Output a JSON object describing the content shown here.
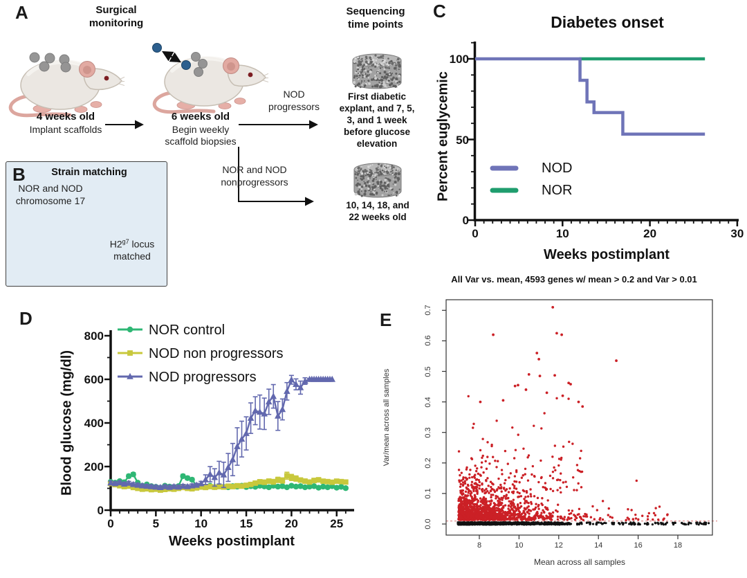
{
  "panels": {
    "a": {
      "label": "A",
      "col1_title": "Surgical\nmonitoring",
      "col2_title": "Sequencing\ntime points",
      "mouse1_caption_bold": "4 weeks old",
      "mouse1_caption": "Implant scaffolds",
      "mouse2_caption_bold": "6 weeks old",
      "mouse2_caption": "Begin weekly\nscaffold biopsies",
      "arrow1_label": "NOD\nprogressors",
      "arrow2_label": "NOR and NOD\nnonprogressors",
      "scaffold1_caption": "First diabetic\nexplant, and 7, 5,\n3, and 1 week\nbefore glucose\nelevation",
      "scaffold2_caption": "10, 14, 18, and\n22 weeks old"
    },
    "b": {
      "label": "B",
      "title": "Strain matching",
      "chromosome_label": "NOR and NOD\nchromosome 17",
      "locus_pre": "H2",
      "locus_sup": "g7",
      "locus_post": " locus",
      "locus_line2": "matched"
    },
    "c": {
      "label": "C"
    },
    "d": {
      "label": "D"
    },
    "e": {
      "label": "E"
    }
  },
  "chart_data": [
    {
      "panel": "C",
      "type": "line",
      "title": "Diabetes onset",
      "xlabel": "Weeks postimplant",
      "ylabel": "Percent euglycemic",
      "xlim": [
        0,
        30
      ],
      "ylim": [
        0,
        110
      ],
      "xticks": [
        0,
        10,
        20,
        30
      ],
      "yticks": [
        0,
        50,
        100
      ],
      "legend_position": "inside-left-middle",
      "series": [
        {
          "name": "NOD",
          "color": "#6f74b8",
          "steps": [
            [
              0,
              100
            ],
            [
              12,
              100
            ],
            [
              12,
              86.7
            ],
            [
              12.8,
              86.7
            ],
            [
              12.8,
              73.3
            ],
            [
              13.6,
              73.3
            ],
            [
              13.6,
              66.7
            ],
            [
              16.9,
              66.7
            ],
            [
              16.9,
              53.3
            ],
            [
              26.3,
              53.3
            ]
          ]
        },
        {
          "name": "NOR",
          "color": "#1f9d6e",
          "steps": [
            [
              11.9,
              100
            ],
            [
              26.3,
              100
            ]
          ]
        }
      ]
    },
    {
      "panel": "D",
      "type": "line-errorbar",
      "xlabel": "Weeks postimplant",
      "ylabel": "Blood glucose (mg/dl)",
      "xlim": [
        0,
        27
      ],
      "ylim": [
        0,
        800
      ],
      "xticks": [
        0,
        5,
        10,
        15,
        20,
        25
      ],
      "yticks": [
        0,
        200,
        400,
        600,
        800
      ],
      "series": [
        {
          "name": "NOR control",
          "color": "#2eb774",
          "marker": "circle",
          "points": [
            [
              0,
              130,
              6
            ],
            [
              0.5,
              126,
              6
            ],
            [
              1,
              133,
              6
            ],
            [
              1.5,
              128,
              6
            ],
            [
              2,
              156,
              8
            ],
            [
              2.5,
              164,
              8
            ],
            [
              3,
              126,
              6
            ],
            [
              3.5,
              112,
              6
            ],
            [
              4,
              118,
              6
            ],
            [
              4.5,
              110,
              6
            ],
            [
              5,
              107,
              6
            ],
            [
              5.5,
              103,
              6
            ],
            [
              6,
              112,
              6
            ],
            [
              6.5,
              108,
              6
            ],
            [
              7,
              105,
              6
            ],
            [
              7.5,
              110,
              6
            ],
            [
              8,
              156,
              8
            ],
            [
              8.5,
              147,
              8
            ],
            [
              9,
              140,
              7
            ],
            [
              9.5,
              112,
              6
            ],
            [
              10,
              110,
              6
            ],
            [
              10.5,
              107,
              6
            ],
            [
              11,
              112,
              6
            ],
            [
              11.5,
              106,
              6
            ],
            [
              12,
              110,
              6
            ],
            [
              12.5,
              107,
              6
            ],
            [
              13,
              105,
              6
            ],
            [
              13.5,
              110,
              6
            ],
            [
              14,
              108,
              6
            ],
            [
              14.5,
              112,
              6
            ],
            [
              15,
              106,
              6
            ],
            [
              15.5,
              110,
              6
            ],
            [
              16,
              107,
              6
            ],
            [
              16.5,
              112,
              6
            ],
            [
              17,
              109,
              6
            ],
            [
              17.5,
              105,
              6
            ],
            [
              18,
              112,
              6
            ],
            [
              18.5,
              108,
              6
            ],
            [
              19,
              110,
              6
            ],
            [
              19.5,
              105,
              6
            ],
            [
              20,
              112,
              6
            ],
            [
              20.5,
              108,
              6
            ],
            [
              21,
              110,
              6
            ],
            [
              21.5,
              105,
              6
            ],
            [
              22,
              108,
              6
            ],
            [
              22.5,
              110,
              6
            ],
            [
              23,
              103,
              6
            ],
            [
              23.5,
              108,
              6
            ],
            [
              24,
              105,
              6
            ],
            [
              24.5,
              110,
              6
            ],
            [
              25,
              103,
              6
            ],
            [
              25.5,
              107,
              6
            ],
            [
              26,
              101,
              6
            ]
          ]
        },
        {
          "name": "NOD non progressors",
          "color": "#c8c83c",
          "marker": "square",
          "points": [
            [
              0,
              122,
              7
            ],
            [
              0.5,
              117,
              7
            ],
            [
              1,
              112,
              7
            ],
            [
              1.5,
              108,
              7
            ],
            [
              2,
              110,
              7
            ],
            [
              2.5,
              104,
              7
            ],
            [
              3,
              100,
              7
            ],
            [
              3.5,
              96,
              7
            ],
            [
              4,
              98,
              7
            ],
            [
              4.5,
              94,
              7
            ],
            [
              5,
              96,
              7
            ],
            [
              5.5,
              92,
              7
            ],
            [
              6,
              95,
              7
            ],
            [
              6.5,
              98,
              7
            ],
            [
              7,
              96,
              7
            ],
            [
              7.5,
              100,
              7
            ],
            [
              8,
              104,
              7
            ],
            [
              8.5,
              100,
              7
            ],
            [
              9,
              98,
              7
            ],
            [
              9.5,
              102,
              7
            ],
            [
              10,
              106,
              7
            ],
            [
              10.5,
              104,
              7
            ],
            [
              11,
              108,
              7
            ],
            [
              11.5,
              105,
              7
            ],
            [
              12,
              108,
              7
            ],
            [
              12.5,
              106,
              7
            ],
            [
              13,
              110,
              7
            ],
            [
              13.5,
              108,
              7
            ],
            [
              14,
              112,
              7
            ],
            [
              14.5,
              110,
              7
            ],
            [
              15,
              114,
              8
            ],
            [
              15.5,
              118,
              8
            ],
            [
              16,
              124,
              9
            ],
            [
              16.5,
              130,
              10
            ],
            [
              17,
              128,
              10
            ],
            [
              17.5,
              133,
              10
            ],
            [
              18,
              130,
              11
            ],
            [
              18.5,
              139,
              12
            ],
            [
              19,
              136,
              12
            ],
            [
              19.5,
              158,
              16
            ],
            [
              20,
              150,
              14
            ],
            [
              20.5,
              145,
              12
            ],
            [
              21,
              138,
              10
            ],
            [
              21.5,
              133,
              10
            ],
            [
              22,
              129,
              9
            ],
            [
              22.5,
              136,
              10
            ],
            [
              23,
              139,
              10
            ],
            [
              23.5,
              133,
              9
            ],
            [
              24,
              131,
              9
            ],
            [
              24.5,
              128,
              9
            ],
            [
              25,
              133,
              9
            ],
            [
              25.5,
              131,
              9
            ],
            [
              26,
              129,
              9
            ]
          ]
        },
        {
          "name": "NOD progressors",
          "color": "#6268ae",
          "marker": "triangle",
          "points": [
            [
              0,
              125,
              8
            ],
            [
              0.5,
              122,
              8
            ],
            [
              1,
              126,
              8
            ],
            [
              1.5,
              120,
              8
            ],
            [
              2,
              124,
              8
            ],
            [
              2.5,
              118,
              8
            ],
            [
              3,
              115,
              8
            ],
            [
              3.5,
              112,
              8
            ],
            [
              4,
              110,
              8
            ],
            [
              4.5,
              108,
              8
            ],
            [
              5,
              106,
              8
            ],
            [
              5.5,
              104,
              8
            ],
            [
              6,
              108,
              8
            ],
            [
              6.5,
              105,
              8
            ],
            [
              7,
              108,
              8
            ],
            [
              7.5,
              106,
              8
            ],
            [
              8,
              110,
              8
            ],
            [
              8.5,
              108,
              8
            ],
            [
              9,
              112,
              8
            ],
            [
              9.5,
              115,
              8
            ],
            [
              10,
              122,
              10
            ],
            [
              10.5,
              140,
              22
            ],
            [
              11,
              165,
              35
            ],
            [
              11.5,
              150,
              40
            ],
            [
              12,
              172,
              52
            ],
            [
              12.5,
              162,
              58
            ],
            [
              13,
              196,
              64
            ],
            [
              13.5,
              232,
              74
            ],
            [
              14,
              292,
              86
            ],
            [
              14.5,
              326,
              82
            ],
            [
              15,
              352,
              76
            ],
            [
              15.5,
              422,
              70
            ],
            [
              16,
              456,
              64
            ],
            [
              16.5,
              450,
              78
            ],
            [
              17,
              442,
              72
            ],
            [
              17.5,
              497,
              58
            ],
            [
              18,
              522,
              54
            ],
            [
              18.5,
              432,
              66
            ],
            [
              19,
              462,
              48
            ],
            [
              19.5,
              545,
              40
            ],
            [
              20,
              598,
              20
            ],
            [
              20.5,
              577,
              25
            ],
            [
              21,
              562,
              30
            ],
            [
              21.5,
              592,
              15
            ],
            [
              22,
              600,
              4
            ],
            [
              22.25,
              600,
              0
            ],
            [
              22.5,
              600,
              0
            ],
            [
              22.75,
              600,
              0
            ],
            [
              23,
              600,
              0
            ],
            [
              23.25,
              600,
              0
            ],
            [
              23.5,
              600,
              0
            ],
            [
              23.75,
              600,
              0
            ],
            [
              24,
              600,
              0
            ],
            [
              24.25,
              600,
              0
            ],
            [
              24.5,
              600,
              0
            ]
          ]
        }
      ]
    },
    {
      "panel": "E",
      "type": "scatter",
      "title": "All Var vs. mean, 4593 genes w/ mean > 0.2 and Var > 0.01",
      "xlabel": "Mean across all samples",
      "ylabel": "Var/mean across all samples",
      "xlim": [
        6.3,
        19.8
      ],
      "ylim": [
        -0.035,
        0.735
      ],
      "xticks": [
        8,
        10,
        12,
        14,
        16,
        18
      ],
      "yticks": [
        0,
        0.1,
        0.2,
        0.3,
        0.4,
        0.5,
        0.6,
        0.7
      ],
      "threshold_line_y": 0.01,
      "threshold_line_color": "#e08d8d",
      "point_colors": {
        "significant": "#cb2026",
        "nonsignificant": "#111111"
      },
      "outliers_red": [
        [
          11.7,
          0.71
        ],
        [
          8.7,
          0.62
        ],
        [
          11.9,
          0.625
        ],
        [
          12.15,
          0.62
        ],
        [
          10.9,
          0.56
        ],
        [
          11.0,
          0.54
        ],
        [
          14.9,
          0.535
        ],
        [
          10.5,
          0.49
        ],
        [
          11.05,
          0.485
        ],
        [
          11.8,
          0.487
        ],
        [
          9.8,
          0.452
        ],
        [
          9.95,
          0.455
        ],
        [
          10.35,
          0.44
        ],
        [
          11.4,
          0.43
        ],
        [
          12.2,
          0.42
        ],
        [
          12.5,
          0.462
        ],
        [
          12.6,
          0.458
        ],
        [
          9.2,
          0.405
        ],
        [
          13.0,
          0.4
        ],
        [
          8.05,
          0.4
        ],
        [
          13.2,
          0.385
        ]
      ],
      "generator": {
        "seed": 1337,
        "black_n": 950,
        "black_right_n": 110,
        "red_n": 1450,
        "red_tall_n": 125,
        "red_right_n": 26
      }
    }
  ]
}
